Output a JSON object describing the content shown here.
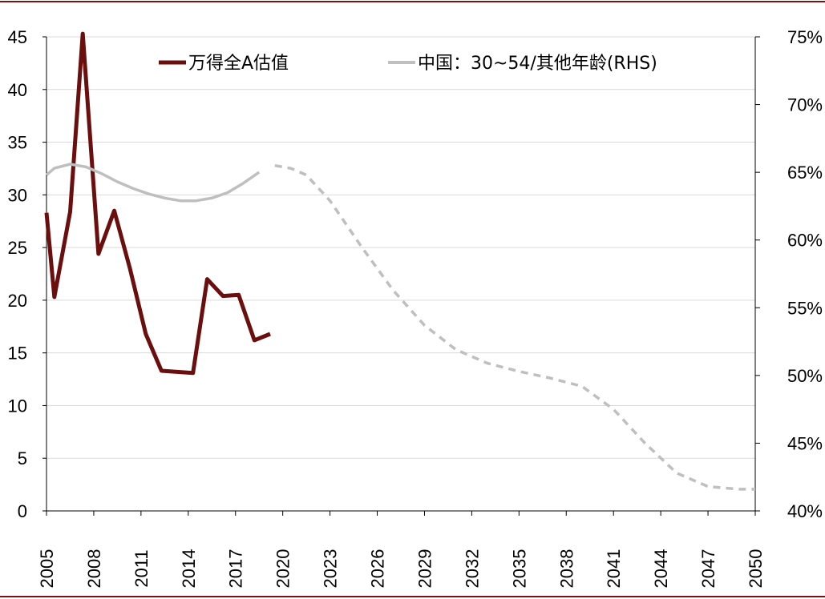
{
  "colors": {
    "frame": "#7b1113",
    "pe_line": "#6b0e0e",
    "demo_line": "#bfbfbf",
    "grid": "#d9d9d9",
    "axis": "#000000"
  },
  "chart_data": {
    "type": "line",
    "x_ticks": [
      "2005",
      "2008",
      "2011",
      "2014",
      "2017",
      "2020",
      "2023",
      "2026",
      "2029",
      "2032",
      "2035",
      "2038",
      "2041",
      "2044",
      "2047",
      "2050"
    ],
    "xlim": [
      2005,
      2050
    ],
    "y_left": {
      "lim": [
        0,
        45
      ],
      "ticks": [
        "0",
        "5",
        "10",
        "15",
        "20",
        "25",
        "30",
        "35",
        "40",
        "45"
      ]
    },
    "y_right": {
      "lim": [
        40,
        75
      ],
      "unit": "%",
      "ticks": [
        "40%",
        "45%",
        "50%",
        "55%",
        "60%",
        "65%",
        "70%",
        "75%"
      ]
    },
    "grid": "horizontal",
    "legend": {
      "placement": "top"
    },
    "series": [
      {
        "name": "万得全A估值",
        "axis": "left",
        "style": "solid",
        "color": "#6b0e0e",
        "points": [
          [
            2005,
            28.3
          ],
          [
            2005.5,
            20.3
          ],
          [
            2006.5,
            28.4
          ],
          [
            2007.3,
            45.3
          ],
          [
            2008.3,
            24.4
          ],
          [
            2009.3,
            28.5
          ],
          [
            2010.3,
            23.0
          ],
          [
            2011.3,
            16.8
          ],
          [
            2012.3,
            13.3
          ],
          [
            2014.3,
            13.1
          ],
          [
            2015.2,
            22.0
          ],
          [
            2016.2,
            20.4
          ],
          [
            2017.2,
            20.5
          ],
          [
            2018.2,
            16.2
          ],
          [
            2019.2,
            16.8
          ]
        ]
      },
      {
        "name": "中国：30~54/其他年龄(RHS)",
        "axis": "right",
        "style": "solid",
        "color": "#bfbfbf",
        "points": [
          [
            2005,
            64.8
          ],
          [
            2005.5,
            65.3
          ],
          [
            2006.5,
            65.6
          ],
          [
            2007.5,
            65.4
          ],
          [
            2008.5,
            64.9
          ],
          [
            2009.5,
            64.3
          ],
          [
            2010.5,
            63.8
          ],
          [
            2011.5,
            63.4
          ],
          [
            2012.5,
            63.1
          ],
          [
            2013.5,
            62.9
          ],
          [
            2014.5,
            62.9
          ],
          [
            2015.5,
            63.1
          ],
          [
            2016.5,
            63.5
          ],
          [
            2017.5,
            64.2
          ],
          [
            2018.5,
            65.0
          ]
        ]
      },
      {
        "name": "",
        "axis": "right",
        "style": "dashed",
        "color": "#bfbfbf",
        "points": [
          [
            2019.5,
            65.5
          ],
          [
            2020.5,
            65.3
          ],
          [
            2021.5,
            64.8
          ],
          [
            2023,
            62.9
          ],
          [
            2025,
            59.5
          ],
          [
            2027,
            56.3
          ],
          [
            2029,
            53.7
          ],
          [
            2031,
            51.9
          ],
          [
            2033,
            50.9
          ],
          [
            2035,
            50.3
          ],
          [
            2037,
            49.8
          ],
          [
            2039,
            49.2
          ],
          [
            2041,
            47.5
          ],
          [
            2043,
            45.0
          ],
          [
            2045,
            42.8
          ],
          [
            2047,
            41.8
          ],
          [
            2049,
            41.6
          ],
          [
            2050,
            41.6
          ]
        ]
      }
    ]
  }
}
